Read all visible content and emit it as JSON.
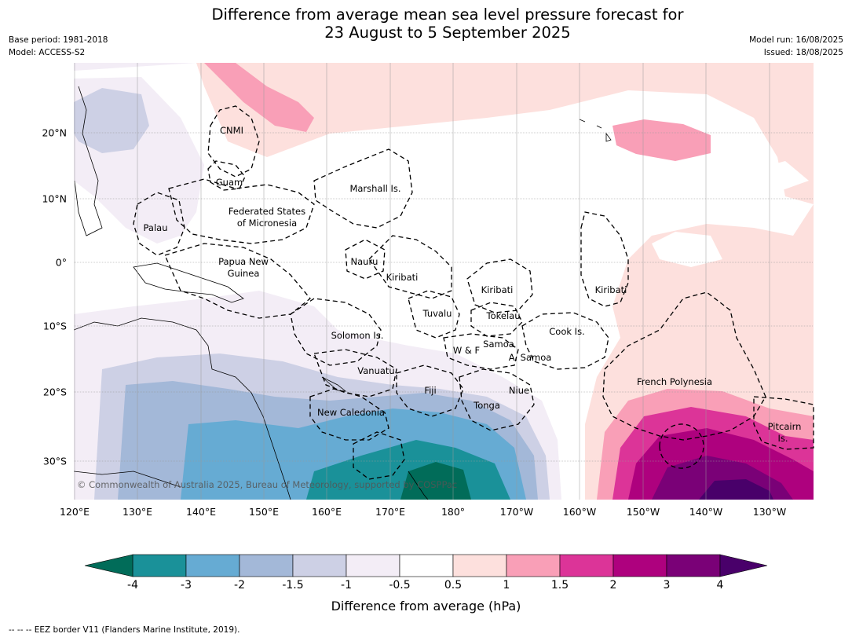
{
  "title_line1": "Difference from average mean sea level pressure forecast for",
  "title_line2": "23 August to 5 September 2025",
  "meta_left": [
    "Base period: 1981-2018",
    "Model: ACCESS-S2"
  ],
  "meta_right": [
    "Model run: 16/08/2025",
    "Issued: 18/08/2025"
  ],
  "lon_labels": [
    "120°E",
    "130°E",
    "140°E",
    "150°E",
    "160°E",
    "170°E",
    "180°",
    "170°W",
    "160°W",
    "150°W",
    "140°W",
    "130°W"
  ],
  "lat_labels": [
    "20°N",
    "10°N",
    "0°",
    "10°S",
    "20°S",
    "30°S"
  ],
  "places": [
    "CNMI",
    "Guam",
    "Marshall Is.",
    "Federated States",
    "of Micronesia",
    "Palau",
    "Papua New",
    "Guinea",
    "Nauru",
    "Kiribati",
    "Kiribati",
    "Kiribati",
    "Tuvalu",
    "Tokelau",
    "Cook Is.",
    "Solomon Is.",
    "W & F",
    "Samoa",
    "A. Samoa",
    "Vanuatu",
    "Fiji",
    "Niue",
    "Tonga",
    "New Caledonia",
    "French Polynesia",
    "Pitcairn",
    "Is."
  ],
  "copyright": "© Commonwealth of Australia 2025, Bureau of Meteorology, supported by COSPPac",
  "colorbar": {
    "ticks": [
      "-4",
      "-3",
      "-2",
      "-1.5",
      "-1",
      "-0.5",
      "0.5",
      "1",
      "1.5",
      "2",
      "3",
      "4"
    ],
    "colors": [
      "#1a9199",
      "#66abd3",
      "#a3b8d8",
      "#cdd0e5",
      "#f3edf6",
      "#ffffff",
      "#fde0dd",
      "#f99fb7",
      "#dc3498",
      "#ae017e",
      "#7a0177"
    ],
    "extend_low_color": "#016c59",
    "extend_high_color": "#49006a",
    "label": "Difference from average (hPa)"
  },
  "footnote": "--  --  -- EEZ border V11 (Flanders Marine Institute, 2019)."
}
